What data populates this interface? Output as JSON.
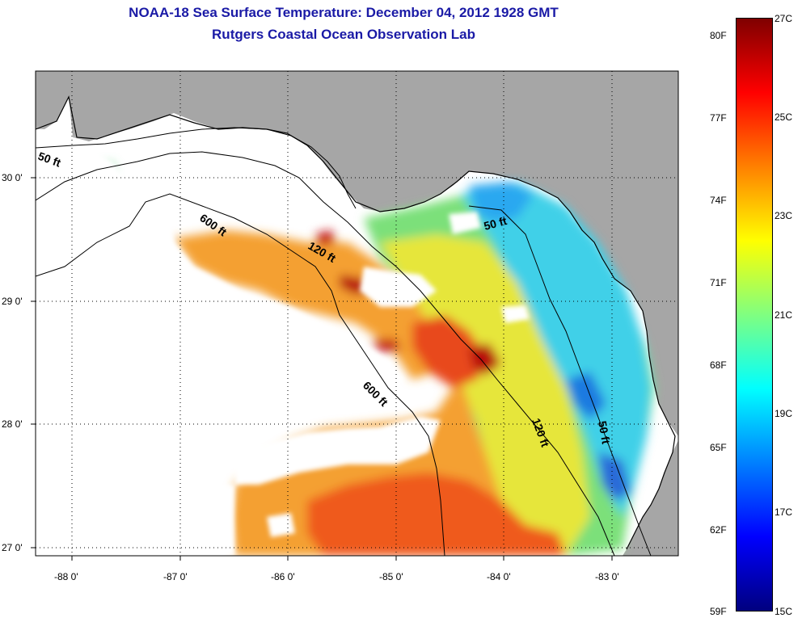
{
  "title": {
    "line1": "NOAA-18 Sea Surface Temperature:  December 04, 2012 1928 GMT",
    "line2": "Rutgers Coastal Ocean Observation Lab"
  },
  "map": {
    "y_axis_labels": [
      "30 0'",
      "29 0'",
      "28 0'",
      "27 0'"
    ],
    "x_axis_labels": [
      "-88 0'",
      "-87 0'",
      "-86 0'",
      "-85 0'",
      "-84 0'",
      "-83 0'"
    ],
    "contour_labels": [
      "50 ft",
      "600 ft",
      "120 ft",
      "50 ft",
      "600 ft",
      "120 ft",
      "50 ft"
    ]
  },
  "colorbar": {
    "celsius_labels": [
      "27C",
      "25C",
      "23C",
      "21C",
      "19C",
      "17C",
      "15C"
    ],
    "fahrenheit_labels": [
      "80F",
      "77F",
      "74F",
      "71F",
      "68F",
      "65F",
      "62F",
      "59F"
    ],
    "colors": [
      "#7f0000",
      "#ff0000",
      "#ff8000",
      "#ffff00",
      "#80ff80",
      "#00ffff",
      "#0080ff",
      "#0000ff",
      "#00007f"
    ]
  }
}
